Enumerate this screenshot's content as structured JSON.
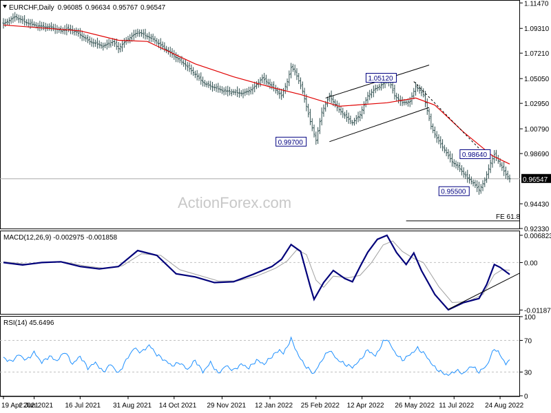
{
  "chart_data": [
    {
      "panel": "price",
      "type": "ohlc",
      "symbol": "EURCHF",
      "timeframe": "Daily",
      "header_values": [
        "0.96085",
        "0.96634",
        "0.95767",
        "0.96547"
      ],
      "ylim": [
        0.9233,
        1.1166
      ],
      "y_ticks": [
        "1.11470",
        "1.09310",
        "1.07210",
        "1.05050",
        "1.02950",
        "1.00790",
        "0.98690",
        "0.96547",
        "0.94430",
        "0.92330"
      ],
      "last_price": 0.96547,
      "close_path": [
        {
          "t": 0,
          "v": 1.097
        },
        {
          "t": 6,
          "v": 1.103
        },
        {
          "t": 12,
          "v": 1.098
        },
        {
          "t": 18,
          "v": 1.095
        },
        {
          "t": 25,
          "v": 1.094
        },
        {
          "t": 30,
          "v": 1.091
        },
        {
          "t": 33,
          "v": 1.093
        },
        {
          "t": 38,
          "v": 1.09
        },
        {
          "t": 45,
          "v": 1.082
        },
        {
          "t": 52,
          "v": 1.078
        },
        {
          "t": 57,
          "v": 1.082
        },
        {
          "t": 60,
          "v": 1.076
        },
        {
          "t": 64,
          "v": 1.083
        },
        {
          "t": 70,
          "v": 1.09
        },
        {
          "t": 73,
          "v": 1.088
        },
        {
          "t": 78,
          "v": 1.084
        },
        {
          "t": 85,
          "v": 1.075
        },
        {
          "t": 95,
          "v": 1.062
        },
        {
          "t": 105,
          "v": 1.046
        },
        {
          "t": 115,
          "v": 1.04
        },
        {
          "t": 125,
          "v": 1.038
        },
        {
          "t": 130,
          "v": 1.042
        },
        {
          "t": 135,
          "v": 1.051
        },
        {
          "t": 140,
          "v": 1.044
        },
        {
          "t": 145,
          "v": 1.036
        },
        {
          "t": 148,
          "v": 1.048
        },
        {
          "t": 150,
          "v": 1.06
        },
        {
          "t": 152,
          "v": 1.057
        },
        {
          "t": 156,
          "v": 1.04
        },
        {
          "t": 160,
          "v": 1.014
        },
        {
          "t": 163,
          "v": 0.998
        },
        {
          "t": 166,
          "v": 1.022
        },
        {
          "t": 170,
          "v": 1.036
        },
        {
          "t": 174,
          "v": 1.026
        },
        {
          "t": 178,
          "v": 1.019
        },
        {
          "t": 182,
          "v": 1.013
        },
        {
          "t": 186,
          "v": 1.02
        },
        {
          "t": 190,
          "v": 1.036
        },
        {
          "t": 194,
          "v": 1.042
        },
        {
          "t": 198,
          "v": 1.046
        },
        {
          "t": 201,
          "v": 1.05
        },
        {
          "t": 204,
          "v": 1.036
        },
        {
          "t": 208,
          "v": 1.03
        },
        {
          "t": 212,
          "v": 1.031
        },
        {
          "t": 215,
          "v": 1.044
        },
        {
          "t": 219,
          "v": 1.037
        },
        {
          "t": 223,
          "v": 1.01
        },
        {
          "t": 226,
          "v": 1.0
        },
        {
          "t": 230,
          "v": 0.99
        },
        {
          "t": 234,
          "v": 0.98
        },
        {
          "t": 238,
          "v": 0.974
        },
        {
          "t": 242,
          "v": 0.966
        },
        {
          "t": 245,
          "v": 0.962
        },
        {
          "t": 248,
          "v": 0.956
        },
        {
          "t": 251,
          "v": 0.964
        },
        {
          "t": 254,
          "v": 0.979
        },
        {
          "t": 256,
          "v": 0.986
        },
        {
          "t": 259,
          "v": 0.978
        },
        {
          "t": 262,
          "v": 0.969
        },
        {
          "t": 264,
          "v": 0.9655
        }
      ],
      "sma": [
        {
          "t": 0,
          "v": 1.096
        },
        {
          "t": 40,
          "v": 1.091
        },
        {
          "t": 60,
          "v": 1.083
        },
        {
          "t": 75,
          "v": 1.082
        },
        {
          "t": 100,
          "v": 1.063
        },
        {
          "t": 120,
          "v": 1.052
        },
        {
          "t": 140,
          "v": 1.043
        },
        {
          "t": 155,
          "v": 1.037
        },
        {
          "t": 175,
          "v": 1.027
        },
        {
          "t": 200,
          "v": 1.03
        },
        {
          "t": 215,
          "v": 1.034
        },
        {
          "t": 225,
          "v": 1.028
        },
        {
          "t": 240,
          "v": 1.005
        },
        {
          "t": 255,
          "v": 0.985
        },
        {
          "t": 264,
          "v": 0.978
        }
      ],
      "channel_lines": [
        {
          "from": {
            "t": 170,
            "v": 0.997
          },
          "to": {
            "t": 222,
            "v": 1.026
          }
        },
        {
          "from": {
            "t": 168,
            "v": 1.034
          },
          "to": {
            "t": 222,
            "v": 1.062
          }
        }
      ],
      "projection_line": {
        "from": {
          "t": 214,
          "v": 1.048
        },
        "to": {
          "t": 250,
          "v": 0.988
        }
      },
      "horizontal_line": 0.96547,
      "fe_line": {
        "value": 0.9298,
        "from_t": 210
      },
      "annotations": [
        {
          "label": "1.05120",
          "t": 197,
          "v": 1.0512
        },
        {
          "label": "0.99700",
          "t": 150,
          "v": 0.997
        },
        {
          "label": "0.98640",
          "t": 246,
          "v": 0.9864
        },
        {
          "label": "0.95500",
          "t": 235,
          "v": 0.955
        }
      ],
      "fe_label": "FE 61.8",
      "watermark": "ActionForex.com"
    },
    {
      "panel": "macd",
      "type": "line",
      "title": "MACD(12,26,9) -0.002975 -0.001858",
      "ylim": [
        -0.01284,
        0.00782
      ],
      "y_ticks": [
        "0.006823",
        "0.00",
        "-0.011874"
      ],
      "zero_line": 0,
      "macd": [
        {
          "t": 0,
          "v": 0.0
        },
        {
          "t": 10,
          "v": -0.0006
        },
        {
          "t": 20,
          "v": 0.0
        },
        {
          "t": 30,
          "v": 0.0002
        },
        {
          "t": 40,
          "v": -0.001
        },
        {
          "t": 50,
          "v": -0.0016
        },
        {
          "t": 60,
          "v": -0.001
        },
        {
          "t": 70,
          "v": 0.003
        },
        {
          "t": 80,
          "v": 0.0018
        },
        {
          "t": 90,
          "v": -0.0028
        },
        {
          "t": 100,
          "v": -0.0036
        },
        {
          "t": 110,
          "v": -0.005
        },
        {
          "t": 120,
          "v": -0.0048
        },
        {
          "t": 130,
          "v": -0.003
        },
        {
          "t": 140,
          "v": -0.001
        },
        {
          "t": 145,
          "v": 0.0008
        },
        {
          "t": 150,
          "v": 0.0045
        },
        {
          "t": 155,
          "v": 0.0028
        },
        {
          "t": 160,
          "v": -0.006
        },
        {
          "t": 162,
          "v": -0.0092
        },
        {
          "t": 167,
          "v": -0.005
        },
        {
          "t": 172,
          "v": -0.002
        },
        {
          "t": 178,
          "v": -0.004
        },
        {
          "t": 182,
          "v": -0.0048
        },
        {
          "t": 186,
          "v": -0.001
        },
        {
          "t": 190,
          "v": 0.0026
        },
        {
          "t": 195,
          "v": 0.0058
        },
        {
          "t": 200,
          "v": 0.0068
        },
        {
          "t": 205,
          "v": 0.0025
        },
        {
          "t": 210,
          "v": -0.0005
        },
        {
          "t": 214,
          "v": 0.0024
        },
        {
          "t": 218,
          "v": -0.002
        },
        {
          "t": 225,
          "v": -0.008
        },
        {
          "t": 232,
          "v": -0.0118
        },
        {
          "t": 240,
          "v": -0.01
        },
        {
          "t": 248,
          "v": -0.009
        },
        {
          "t": 252,
          "v": -0.0055
        },
        {
          "t": 256,
          "v": -0.0005
        },
        {
          "t": 259,
          "v": -0.0012
        },
        {
          "t": 264,
          "v": -0.003
        }
      ],
      "signal": [
        {
          "t": 0,
          "v": 0.0002
        },
        {
          "t": 12,
          "v": -0.0004
        },
        {
          "t": 22,
          "v": 0.0
        },
        {
          "t": 32,
          "v": 0.0001
        },
        {
          "t": 42,
          "v": -0.0008
        },
        {
          "t": 52,
          "v": -0.0014
        },
        {
          "t": 62,
          "v": -0.0008
        },
        {
          "t": 72,
          "v": 0.0022
        },
        {
          "t": 82,
          "v": 0.0018
        },
        {
          "t": 92,
          "v": -0.0018
        },
        {
          "t": 102,
          "v": -0.0032
        },
        {
          "t": 112,
          "v": -0.0046
        },
        {
          "t": 122,
          "v": -0.0046
        },
        {
          "t": 132,
          "v": -0.0034
        },
        {
          "t": 142,
          "v": -0.0014
        },
        {
          "t": 148,
          "v": 0.0004
        },
        {
          "t": 153,
          "v": 0.0032
        },
        {
          "t": 158,
          "v": 0.002
        },
        {
          "t": 163,
          "v": -0.0044
        },
        {
          "t": 167,
          "v": -0.0062
        },
        {
          "t": 172,
          "v": -0.0034
        },
        {
          "t": 180,
          "v": -0.0038
        },
        {
          "t": 186,
          "v": -0.0032
        },
        {
          "t": 192,
          "v": 0.0
        },
        {
          "t": 198,
          "v": 0.0044
        },
        {
          "t": 203,
          "v": 0.0054
        },
        {
          "t": 208,
          "v": 0.0028
        },
        {
          "t": 214,
          "v": 0.001
        },
        {
          "t": 219,
          "v": 0.0
        },
        {
          "t": 227,
          "v": -0.006
        },
        {
          "t": 234,
          "v": -0.01
        },
        {
          "t": 242,
          "v": -0.0098
        },
        {
          "t": 250,
          "v": -0.008
        },
        {
          "t": 256,
          "v": -0.003
        },
        {
          "t": 260,
          "v": -0.0018
        },
        {
          "t": 264,
          "v": -0.0019
        }
      ],
      "trendline": {
        "from": {
          "t": 232,
          "v": -0.0117
        },
        "to": {
          "t": 264,
          "v": -0.0033
        }
      }
    },
    {
      "panel": "rsi",
      "type": "line",
      "title": "RSI(14) 45.6496",
      "ylim": [
        0,
        100
      ],
      "y_ticks": [
        "100",
        "70",
        "30",
        "0"
      ],
      "levels": [
        70,
        30
      ],
      "rsi": [
        {
          "t": 0,
          "v": 48
        },
        {
          "t": 4,
          "v": 43
        },
        {
          "t": 8,
          "v": 52
        },
        {
          "t": 12,
          "v": 45
        },
        {
          "t": 16,
          "v": 55
        },
        {
          "t": 20,
          "v": 42
        },
        {
          "t": 24,
          "v": 50
        },
        {
          "t": 28,
          "v": 44
        },
        {
          "t": 32,
          "v": 56
        },
        {
          "t": 36,
          "v": 40
        },
        {
          "t": 40,
          "v": 50
        },
        {
          "t": 44,
          "v": 35
        },
        {
          "t": 48,
          "v": 42
        },
        {
          "t": 52,
          "v": 30
        },
        {
          "t": 56,
          "v": 40
        },
        {
          "t": 60,
          "v": 28
        },
        {
          "t": 64,
          "v": 45
        },
        {
          "t": 68,
          "v": 60
        },
        {
          "t": 72,
          "v": 55
        },
        {
          "t": 76,
          "v": 64
        },
        {
          "t": 80,
          "v": 52
        },
        {
          "t": 84,
          "v": 45
        },
        {
          "t": 88,
          "v": 38
        },
        {
          "t": 92,
          "v": 42
        },
        {
          "t": 96,
          "v": 33
        },
        {
          "t": 100,
          "v": 45
        },
        {
          "t": 104,
          "v": 30
        },
        {
          "t": 108,
          "v": 42
        },
        {
          "t": 112,
          "v": 28
        },
        {
          "t": 116,
          "v": 38
        },
        {
          "t": 120,
          "v": 32
        },
        {
          "t": 124,
          "v": 40
        },
        {
          "t": 128,
          "v": 35
        },
        {
          "t": 132,
          "v": 45
        },
        {
          "t": 136,
          "v": 40
        },
        {
          "t": 140,
          "v": 50
        },
        {
          "t": 144,
          "v": 58
        },
        {
          "t": 146,
          "v": 53
        },
        {
          "t": 150,
          "v": 72
        },
        {
          "t": 154,
          "v": 50
        },
        {
          "t": 158,
          "v": 36
        },
        {
          "t": 162,
          "v": 28
        },
        {
          "t": 166,
          "v": 45
        },
        {
          "t": 170,
          "v": 58
        },
        {
          "t": 174,
          "v": 46
        },
        {
          "t": 178,
          "v": 40
        },
        {
          "t": 182,
          "v": 36
        },
        {
          "t": 186,
          "v": 45
        },
        {
          "t": 190,
          "v": 58
        },
        {
          "t": 194,
          "v": 50
        },
        {
          "t": 198,
          "v": 68
        },
        {
          "t": 200,
          "v": 72
        },
        {
          "t": 204,
          "v": 55
        },
        {
          "t": 208,
          "v": 45
        },
        {
          "t": 212,
          "v": 52
        },
        {
          "t": 216,
          "v": 60
        },
        {
          "t": 220,
          "v": 52
        },
        {
          "t": 224,
          "v": 38
        },
        {
          "t": 228,
          "v": 30
        },
        {
          "t": 232,
          "v": 26
        },
        {
          "t": 236,
          "v": 32
        },
        {
          "t": 240,
          "v": 28
        },
        {
          "t": 244,
          "v": 38
        },
        {
          "t": 248,
          "v": 30
        },
        {
          "t": 252,
          "v": 38
        },
        {
          "t": 256,
          "v": 60
        },
        {
          "t": 258,
          "v": 55
        },
        {
          "t": 260,
          "v": 48
        },
        {
          "t": 262,
          "v": 40
        },
        {
          "t": 264,
          "v": 46
        }
      ]
    }
  ],
  "x_axis": {
    "t_max": 264,
    "labels": [
      {
        "label": "19 Apr 2021",
        "t": 0
      },
      {
        "label": "2 Jun 2021",
        "t": 16
      },
      {
        "label": "16 Jul 2021",
        "t": 40
      },
      {
        "label": "31 Aug 2021",
        "t": 65
      },
      {
        "label": "14 Oct 2021",
        "t": 89
      },
      {
        "label": "29 Nov 2021",
        "t": 114
      },
      {
        "label": "12 Jan 2022",
        "t": 139
      },
      {
        "label": "25 Feb 2022",
        "t": 163
      },
      {
        "label": "12 Apr 2022",
        "t": 187
      },
      {
        "label": "26 May 2022",
        "t": 212
      },
      {
        "label": "11 Jul 2022",
        "t": 235
      },
      {
        "label": "24 Aug 2022",
        "t": 259
      }
    ]
  },
  "colors": {
    "price_bars": "#2f4f4f",
    "sma": "#e00000",
    "trend": "#000000",
    "annotation": "#000080",
    "macd": "#00007a",
    "signal": "#a0a0a0",
    "rsi": "#1e90ff",
    "grid": "#c0c0c0",
    "hline": "#a9a9a9",
    "label_bg": "#000000",
    "label_fg": "#ffffff"
  }
}
